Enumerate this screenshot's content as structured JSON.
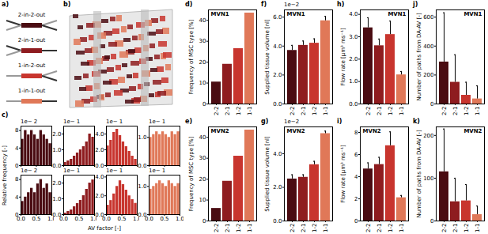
{
  "panel_labels": [
    "a)",
    "b)",
    "c)",
    "d)",
    "e)",
    "f)",
    "g)",
    "h)",
    "i)",
    "j)",
    "k)"
  ],
  "schematic": {
    "labels": [
      "2-in-2-out",
      "2-in-1-out",
      "1-in-2-out",
      "1-in-1-out"
    ]
  },
  "shared_labels": {
    "y_label": "Relative frequency [-]",
    "x_label": "AV factor [-]"
  },
  "chart_data": [
    {
      "type": "histogram",
      "annotations": [
        "1e− 2"
      ],
      "bins": [
        0,
        0.1,
        0.2,
        0.3,
        0.4,
        0.5,
        0.6,
        0.7,
        0.8,
        0.9,
        1
      ],
      "values": [
        6,
        8,
        7,
        8,
        7,
        6,
        8,
        7,
        6,
        5
      ],
      "color": "#4a0c12",
      "xlim": [
        0,
        1
      ],
      "xticks": [
        0,
        0.5,
        1
      ],
      "ylim": [
        0,
        9
      ],
      "yticks": [
        0,
        4,
        8
      ],
      "tick_labels": "y"
    },
    {
      "type": "histogram",
      "annotations": [
        "1e− 1"
      ],
      "bins": [
        0,
        0.1,
        0.2,
        0.3,
        0.4,
        0.5,
        0.6,
        0.7,
        0.8,
        0.9,
        1
      ],
      "values": [
        0.2,
        0.3,
        0.4,
        0.6,
        0.8,
        1.0,
        1.2,
        1.5,
        2.0,
        1.8
      ],
      "color": "#8e1c1f",
      "xlim": [
        0,
        1
      ],
      "xticks": [
        0,
        0.5,
        1
      ],
      "ylim": [
        0,
        2.5
      ],
      "yticks": [
        0,
        1,
        2
      ],
      "tick_labels": "y"
    },
    {
      "type": "histogram",
      "annotations": [
        "1e− 1"
      ],
      "bins": [
        0,
        0.1,
        0.2,
        0.3,
        0.4,
        0.5,
        0.6,
        0.7,
        0.8,
        0.9,
        1
      ],
      "values": [
        2.5,
        3.2,
        4.2,
        4.6,
        3.8,
        3.0,
        2.4,
        1.8,
        1.2,
        0.8
      ],
      "color": "#c8352e",
      "xlim": [
        0,
        1
      ],
      "xticks": [
        0,
        0.5,
        1
      ],
      "ylim": [
        0,
        5
      ],
      "yticks": [
        0,
        2,
        4
      ],
      "tick_labels": "y"
    },
    {
      "type": "histogram",
      "annotations": [
        "1e− 1"
      ],
      "bins": [
        0,
        0.1,
        0.2,
        0.3,
        0.4,
        0.5,
        0.6,
        0.7,
        0.8,
        0.9,
        1
      ],
      "values": [
        1.0,
        1.1,
        1.2,
        1.1,
        1.2,
        1.1,
        1.0,
        1.2,
        1.1,
        1.2
      ],
      "color": "#e07858",
      "xlim": [
        0,
        1
      ],
      "xticks": [
        0,
        0.5,
        1
      ],
      "ylim": [
        0,
        1.4
      ],
      "yticks": [
        0,
        1
      ],
      "tick_labels": "y"
    },
    {
      "type": "histogram",
      "annotations": [
        "1e− 2"
      ],
      "bins": [
        0,
        0.1,
        0.2,
        0.3,
        0.4,
        0.5,
        0.6,
        0.7,
        0.8,
        0.9,
        1
      ],
      "values": [
        3,
        4,
        5,
        6,
        5,
        7,
        8,
        6,
        7,
        5
      ],
      "color": "#4a0c12",
      "xlim": [
        0,
        1
      ],
      "xticks": [
        0,
        0.5,
        1
      ],
      "ylim": [
        0,
        9
      ],
      "yticks": [
        0,
        4,
        8
      ]
    },
    {
      "type": "histogram",
      "annotations": [
        "1e− 1"
      ],
      "bins": [
        0,
        0.1,
        0.2,
        0.3,
        0.4,
        0.5,
        0.6,
        0.7,
        0.8,
        0.9,
        1
      ],
      "values": [
        0.1,
        0.2,
        0.3,
        0.5,
        0.7,
        0.9,
        1.2,
        1.6,
        2.0,
        2.2
      ],
      "color": "#8e1c1f",
      "xlim": [
        0,
        1
      ],
      "xticks": [
        0,
        0.5,
        1
      ],
      "ylim": [
        0,
        2.5
      ],
      "yticks": [
        0,
        1,
        2
      ]
    },
    {
      "type": "histogram",
      "annotations": [
        "1e− 1"
      ],
      "bins": [
        0,
        0.1,
        0.2,
        0.3,
        0.4,
        0.5,
        0.6,
        0.7,
        0.8,
        0.9,
        1
      ],
      "values": [
        1.0,
        1.5,
        2.2,
        3.0,
        3.6,
        3.2,
        2.6,
        2.0,
        1.6,
        1.2
      ],
      "color": "#c8352e",
      "xlim": [
        0,
        1
      ],
      "xticks": [
        0,
        0.5,
        1
      ],
      "ylim": [
        0,
        4.2
      ],
      "yticks": [
        0,
        2,
        4
      ]
    },
    {
      "type": "histogram",
      "annotations": [
        "1e− 1"
      ],
      "bins": [
        0,
        0.1,
        0.2,
        0.3,
        0.4,
        0.5,
        0.6,
        0.7,
        0.8,
        0.9,
        1
      ],
      "values": [
        0.9,
        1.0,
        1.1,
        1.2,
        1.1,
        1.0,
        1.2,
        1.1,
        1.0,
        1.1
      ],
      "color": "#e07858",
      "xlim": [
        0,
        1
      ],
      "xticks": [
        0,
        0.5,
        1
      ],
      "ylim": [
        0,
        1.4
      ],
      "yticks": [
        0,
        1
      ]
    },
    {
      "type": "bar",
      "title": "MVN1",
      "categories": [
        "2-2",
        "2-1",
        "1-2",
        "1-1"
      ],
      "values": [
        10.5,
        19,
        26.5,
        43.5
      ],
      "colors": [
        "#4a0c12",
        "#8e1c1f",
        "#c8352e",
        "#e07858"
      ],
      "y_label": "Frequency of MSC type [%]",
      "ylim": [
        0,
        45
      ],
      "yticks": [
        0,
        10,
        20,
        30,
        40
      ]
    },
    {
      "type": "bar",
      "title": "MVN2",
      "categories": [
        "2-2",
        "2-1",
        "1-2",
        "1-1"
      ],
      "values": [
        6,
        19,
        31,
        43.5
      ],
      "colors": [
        "#4a0c12",
        "#8e1c1f",
        "#c8352e",
        "#e07858"
      ],
      "y_label": "Frequency of MSC type [%]",
      "ylim": [
        0,
        45
      ],
      "yticks": [
        0,
        10,
        20,
        30,
        40
      ]
    },
    {
      "type": "bar",
      "title": "MVN1",
      "annotations": [
        "1e−2"
      ],
      "categories": [
        "2-2",
        "2-1",
        "1-2",
        "1-1"
      ],
      "values": [
        3.7,
        4.05,
        4.2,
        5.75
      ],
      "errors": [
        0.35,
        0.3,
        0.3,
        0.3
      ],
      "colors": [
        "#4a0c12",
        "#8e1c1f",
        "#c8352e",
        "#e07858"
      ],
      "y_label": "Supplied tissue volume [nl]",
      "ylim": [
        0,
        6.5
      ],
      "yticks": [
        0,
        2,
        4,
        6
      ]
    },
    {
      "type": "bar",
      "title": "MVN2",
      "annotations": [
        "1e−2"
      ],
      "categories": [
        "2-2",
        "2-1",
        "1-2",
        "1-1"
      ],
      "values": [
        2.5,
        2.6,
        3.35,
        5.2
      ],
      "errors": [
        0.25,
        0.15,
        0.2,
        0.15
      ],
      "colors": [
        "#4a0c12",
        "#8e1c1f",
        "#c8352e",
        "#e07858"
      ],
      "y_label": "Supplied tissue volume [nl]",
      "ylim": [
        0,
        5.6
      ],
      "yticks": [
        0,
        2,
        4
      ]
    },
    {
      "type": "bar",
      "title": "MVN1",
      "categories": [
        "2-2",
        "2-1",
        "1-2",
        "1-1"
      ],
      "values": [
        3.4,
        2.6,
        3.1,
        1.3
      ],
      "errors": [
        0.45,
        0.3,
        0.6,
        0.15
      ],
      "colors": [
        "#4a0c12",
        "#8e1c1f",
        "#c8352e",
        "#e07858"
      ],
      "y_label": "Flow rate [μm³ ms⁻¹]",
      "ylim": [
        0,
        4.2
      ],
      "yticks": [
        0,
        1,
        2,
        3,
        4
      ]
    },
    {
      "type": "bar",
      "title": "MVN2",
      "categories": [
        "2-2",
        "2-1",
        "1-2",
        "1-1"
      ],
      "values": [
        4.7,
        5.1,
        6.8,
        2.1
      ],
      "errors": [
        0.55,
        0.65,
        1.25,
        0.2
      ],
      "colors": [
        "#4a0c12",
        "#8e1c1f",
        "#c8352e",
        "#e07858"
      ],
      "y_label": "Flow rate [μm³ ms⁻¹]",
      "ylim": [
        0,
        8.5
      ],
      "yticks": [
        0,
        2,
        4,
        6,
        8
      ]
    },
    {
      "type": "bar",
      "title": "MVN1",
      "categories": [
        "2-2",
        "2-1",
        "1-2",
        "1-1"
      ],
      "values": [
        290,
        150,
        60,
        35
      ],
      "errors": [
        340,
        190,
        90,
        90
      ],
      "colors": [
        "#4a0c12",
        "#8e1c1f",
        "#c8352e",
        "#e07858"
      ],
      "y_label": "Number of paths from DA-AV [-]",
      "ylim": [
        0,
        650
      ],
      "yticks": [
        0,
        200,
        400,
        600
      ]
    },
    {
      "type": "bar",
      "title": "MVN2",
      "categories": [
        "2-2",
        "2-1",
        "1-2",
        "1-1"
      ],
      "values": [
        115,
        45,
        47,
        15
      ],
      "errors": [
        100,
        55,
        38,
        20
      ],
      "colors": [
        "#4a0c12",
        "#8e1c1f",
        "#c8352e",
        "#e07858"
      ],
      "y_label": "Number of paths from DA-AV [-]",
      "ylim": [
        0,
        220
      ],
      "yticks": [
        0,
        100,
        200
      ]
    }
  ]
}
